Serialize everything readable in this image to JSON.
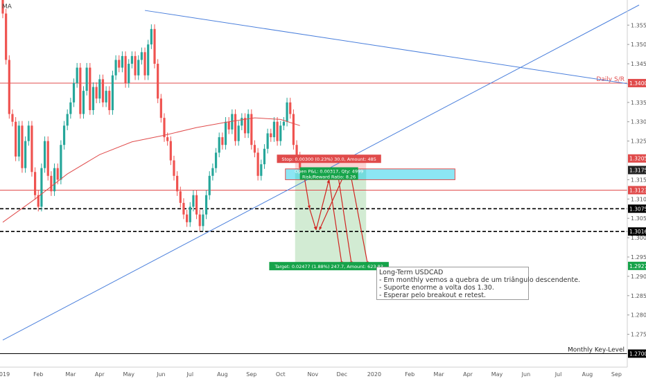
{
  "indicator_label": "MA",
  "chart_data": {
    "type": "candlestick",
    "instrument_note_title": "Long-Term USDCAD",
    "y_axis": {
      "range": [
        1.2665,
        1.3615
      ],
      "ticks": [
        "1.35500",
        "1.35000",
        "1.34500",
        "1.33500",
        "1.33000",
        "1.32500",
        "1.31500",
        "1.31000",
        "1.30500",
        "1.30000",
        "1.29500",
        "1.29000",
        "1.28500",
        "1.28000",
        "1.27500"
      ]
    },
    "x_axis": {
      "ticks": [
        {
          "label": "2019",
          "i": 0
        },
        {
          "label": "Feb",
          "i": 11
        },
        {
          "label": "Mar",
          "i": 21
        },
        {
          "label": "Apr",
          "i": 30
        },
        {
          "label": "May",
          "i": 39
        },
        {
          "label": "Jun",
          "i": 49
        },
        {
          "label": "Jul",
          "i": 58
        },
        {
          "label": "Aug",
          "i": 68
        },
        {
          "label": "Sep",
          "i": 77
        },
        {
          "label": "Oct",
          "i": 86
        },
        {
          "label": "Nov",
          "i": 96
        },
        {
          "label": "Dec",
          "i": 105
        },
        {
          "label": "2020",
          "i": 115
        },
        {
          "label": "Feb",
          "i": 126
        },
        {
          "label": "Mar",
          "i": 135
        },
        {
          "label": "Apr",
          "i": 144
        },
        {
          "label": "May",
          "i": 153
        },
        {
          "label": "Jun",
          "i": 162
        },
        {
          "label": "Jul",
          "i": 172
        },
        {
          "label": "Aug",
          "i": 181
        },
        {
          "label": "Sep",
          "i": 190
        }
      ]
    },
    "price_levels": [
      {
        "label": "Daily S/R",
        "value": 1.34,
        "tag": "1.34000",
        "color": "#e04b4b",
        "style": "solid"
      },
      {
        "label": "",
        "value": 1.3123,
        "tag": "1.31233",
        "color": "#e04b4b",
        "style": "solid"
      },
      {
        "label": "",
        "value": 1.3075,
        "tag": "1.30750",
        "color": "#000000",
        "style": "dashed"
      },
      {
        "label": "",
        "value": 1.3016,
        "tag": "1.30162",
        "color": "#000000",
        "style": "dashed"
      },
      {
        "label": "Monthly Key-Level",
        "value": 1.27,
        "tag": "1.27000",
        "color": "#000000",
        "style": "solid"
      }
    ],
    "price_tags": [
      {
        "value": 1.3205,
        "tag": "1.32050",
        "color": "#e04b4b"
      },
      {
        "value": 1.3175,
        "tag": "1.31750",
        "color": "#222222"
      },
      {
        "value": 1.2927,
        "tag": "1.29273",
        "color": "#16a34a"
      }
    ],
    "position": {
      "entry": 1.3175,
      "stop": 1.3205,
      "target": 1.29273,
      "zone_top": 1.3178,
      "zone_bottom": 1.315,
      "stop_label": "Stop: 0.00300 (0.23%) 30.0, Amount: 485",
      "open_pl_label": "Open P&L: 0.00317, Qty: 4999",
      "ratio_label": "Risk/Reward Ratio: 8.26",
      "target_label": "Target: 0.02477 (1.88%) 247.7, Amount: 623.83"
    },
    "candles": [
      [
        1.364,
        1.358
      ],
      [
        1.358,
        1.346
      ],
      [
        1.346,
        1.332
      ],
      [
        1.332,
        1.33
      ],
      [
        1.33,
        1.321
      ],
      [
        1.321,
        1.329
      ],
      [
        1.329,
        1.318
      ],
      [
        1.318,
        1.325
      ],
      [
        1.325,
        1.329
      ],
      [
        1.329,
        1.317
      ],
      [
        1.317,
        1.311
      ],
      [
        1.311,
        1.308
      ],
      [
        1.308,
        1.318
      ],
      [
        1.318,
        1.325
      ],
      [
        1.325,
        1.316
      ],
      [
        1.316,
        1.312
      ],
      [
        1.312,
        1.318
      ],
      [
        1.318,
        1.315
      ],
      [
        1.315,
        1.324
      ],
      [
        1.324,
        1.329
      ],
      [
        1.329,
        1.332
      ],
      [
        1.332,
        1.335
      ],
      [
        1.335,
        1.34
      ],
      [
        1.34,
        1.344
      ],
      [
        1.344,
        1.332
      ],
      [
        1.332,
        1.338
      ],
      [
        1.338,
        1.344
      ],
      [
        1.344,
        1.333
      ],
      [
        1.333,
        1.339
      ],
      [
        1.339,
        1.336
      ],
      [
        1.336,
        1.341
      ],
      [
        1.341,
        1.335
      ],
      [
        1.335,
        1.338
      ],
      [
        1.338,
        1.333
      ],
      [
        1.333,
        1.342
      ],
      [
        1.342,
        1.346
      ],
      [
        1.346,
        1.344
      ],
      [
        1.344,
        1.347
      ],
      [
        1.347,
        1.34
      ],
      [
        1.34,
        1.345
      ],
      [
        1.345,
        1.347
      ],
      [
        1.347,
        1.342
      ],
      [
        1.342,
        1.346
      ],
      [
        1.346,
        1.348
      ],
      [
        1.348,
        1.342
      ],
      [
        1.342,
        1.35
      ],
      [
        1.35,
        1.354
      ],
      [
        1.354,
        1.345
      ],
      [
        1.345,
        1.336
      ],
      [
        1.336,
        1.331
      ],
      [
        1.331,
        1.326
      ],
      [
        1.326,
        1.325
      ],
      [
        1.325,
        1.32
      ],
      [
        1.32,
        1.316
      ],
      [
        1.316,
        1.312
      ],
      [
        1.312,
        1.309
      ],
      [
        1.309,
        1.306
      ],
      [
        1.306,
        1.304
      ],
      [
        1.304,
        1.308
      ],
      [
        1.308,
        1.311
      ],
      [
        1.311,
        1.306
      ],
      [
        1.306,
        1.303
      ],
      [
        1.303,
        1.306
      ],
      [
        1.306,
        1.311
      ],
      [
        1.311,
        1.316
      ],
      [
        1.316,
        1.318
      ],
      [
        1.318,
        1.322
      ],
      [
        1.322,
        1.326
      ],
      [
        1.326,
        1.324
      ],
      [
        1.324,
        1.33
      ],
      [
        1.33,
        1.328
      ],
      [
        1.328,
        1.332
      ],
      [
        1.332,
        1.325
      ],
      [
        1.325,
        1.329
      ],
      [
        1.329,
        1.331
      ],
      [
        1.331,
        1.327
      ],
      [
        1.327,
        1.332
      ],
      [
        1.332,
        1.324
      ],
      [
        1.324,
        1.322
      ],
      [
        1.322,
        1.316
      ],
      [
        1.316,
        1.319
      ],
      [
        1.319,
        1.323
      ],
      [
        1.323,
        1.327
      ],
      [
        1.327,
        1.326
      ],
      [
        1.326,
        1.33
      ],
      [
        1.33,
        1.325
      ],
      [
        1.325,
        1.329
      ],
      [
        1.329,
        1.33
      ],
      [
        1.33,
        1.335
      ],
      [
        1.335,
        1.332
      ],
      [
        1.332,
        1.324
      ],
      [
        1.324,
        1.321
      ],
      [
        1.321,
        1.318
      ]
    ],
    "moving_average": [
      [
        0,
        1.304
      ],
      [
        10,
        1.31
      ],
      [
        20,
        1.3165
      ],
      [
        30,
        1.3215
      ],
      [
        40,
        1.3248
      ],
      [
        50,
        1.3265
      ],
      [
        60,
        1.3285
      ],
      [
        70,
        1.33
      ],
      [
        78,
        1.331
      ],
      [
        86,
        1.3306
      ],
      [
        92,
        1.329
      ]
    ],
    "trendlines": [
      {
        "name": "descending",
        "from": [
          44,
          1.3588
        ],
        "to": [
          200,
          1.339
        ],
        "color": "#4a7fdc"
      },
      {
        "name": "ascending",
        "from": [
          0,
          1.2735
        ],
        "to": [
          197,
          1.3602
        ],
        "color": "#4a7fdc"
      }
    ],
    "projection_arrows": [
      [
        [
          93,
          1.3175
        ],
        [
          95,
          1.3075
        ]
      ],
      [
        [
          95,
          1.3075
        ],
        [
          97,
          1.302
        ]
      ],
      [
        [
          97,
          1.302
        ],
        [
          101,
          1.315
        ]
      ],
      [
        [
          101,
          1.315
        ],
        [
          105,
          1.293
        ]
      ],
      [
        [
          105,
          1.315
        ],
        [
          98,
          1.302
        ]
      ],
      [
        [
          104,
          1.315
        ],
        [
          108,
          1.293
        ]
      ],
      [
        [
          108,
          1.315
        ],
        [
          113,
          1.293
        ]
      ]
    ],
    "notes": [
      "- Em monthly vemos a quebra de um triângulo descendente.",
      "- Suporte enorme a volta dos 1.30.",
      "- Esperar pelo breakout e retest."
    ]
  }
}
